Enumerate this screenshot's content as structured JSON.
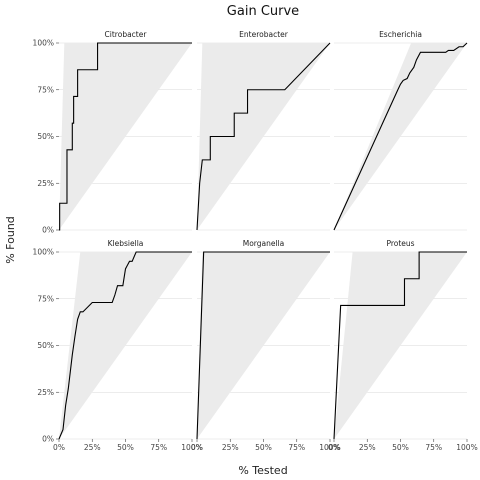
{
  "chart_data": {
    "type": "line",
    "title": "Gain Curve",
    "xlabel": "% Tested",
    "ylabel": "% Found",
    "xlim": [
      0,
      1
    ],
    "ylim": [
      0,
      1
    ],
    "x_ticks": [
      "0%",
      "25%",
      "50%",
      "75%",
      "100%"
    ],
    "y_ticks": [
      "0%",
      "25%",
      "50%",
      "75%",
      "100%"
    ],
    "grid": true,
    "layout": "facets-3x2",
    "panels": [
      {
        "name": "Citrobacter",
        "wizard": 0.04,
        "base_prevalence": 0.04,
        "curve": {
          "x": [
            0,
            0.005,
            0.005,
            0.06,
            0.06,
            0.1,
            0.1,
            0.11,
            0.11,
            0.14,
            0.14,
            0.16,
            0.16,
            0.29,
            0.29,
            1.0
          ],
          "y": [
            0,
            0,
            0.143,
            0.143,
            0.429,
            0.429,
            0.571,
            0.571,
            0.714,
            0.714,
            0.857,
            0.857,
            0.857,
            0.857,
            1.0,
            1.0
          ]
        }
      },
      {
        "name": "Enterobacter",
        "wizard": 0.04,
        "base_prevalence": 0.04,
        "curve": {
          "x": [
            0,
            0.02,
            0.04,
            0.1,
            0.1,
            0.28,
            0.28,
            0.38,
            0.38,
            0.66,
            1.0
          ],
          "y": [
            0,
            0.25,
            0.375,
            0.375,
            0.5,
            0.5,
            0.625,
            0.625,
            0.75,
            0.75,
            1.0
          ]
        }
      },
      {
        "name": "Escherichia",
        "wizard": 0.58,
        "base_prevalence": 0.58,
        "curve": {
          "x": [
            0,
            0.48,
            0.5,
            0.52,
            0.55,
            0.57,
            0.6,
            0.62,
            0.65,
            0.84,
            0.86,
            0.9,
            0.94,
            0.97,
            1.0
          ],
          "y": [
            0,
            0.75,
            0.78,
            0.8,
            0.81,
            0.84,
            0.87,
            0.91,
            0.95,
            0.95,
            0.96,
            0.96,
            0.98,
            0.98,
            1.0
          ]
        }
      },
      {
        "name": "Klebsiella",
        "wizard": 0.16,
        "base_prevalence": 0.16,
        "curve": {
          "x": [
            0,
            0.03,
            0.05,
            0.07,
            0.1,
            0.12,
            0.14,
            0.16,
            0.18,
            0.25,
            0.4,
            0.42,
            0.44,
            0.48,
            0.5,
            0.53,
            0.55,
            0.58,
            1.0
          ],
          "y": [
            0,
            0.05,
            0.18,
            0.27,
            0.45,
            0.55,
            0.64,
            0.68,
            0.68,
            0.73,
            0.73,
            0.77,
            0.82,
            0.82,
            0.91,
            0.95,
            0.95,
            1.0,
            1.0
          ]
        }
      },
      {
        "name": "Morganella",
        "wizard": 0.04,
        "base_prevalence": 0.04,
        "curve": {
          "x": [
            0,
            0.05,
            1.0
          ],
          "y": [
            0,
            1.0,
            1.0
          ]
        }
      },
      {
        "name": "Proteus",
        "wizard": 0.14,
        "base_prevalence": 0.14,
        "curve": {
          "x": [
            0,
            0.05,
            0.1,
            0.53,
            0.53,
            0.64,
            0.64,
            1.0
          ],
          "y": [
            0,
            0.714,
            0.714,
            0.714,
            0.857,
            0.857,
            1.0,
            1.0
          ]
        }
      }
    ]
  }
}
